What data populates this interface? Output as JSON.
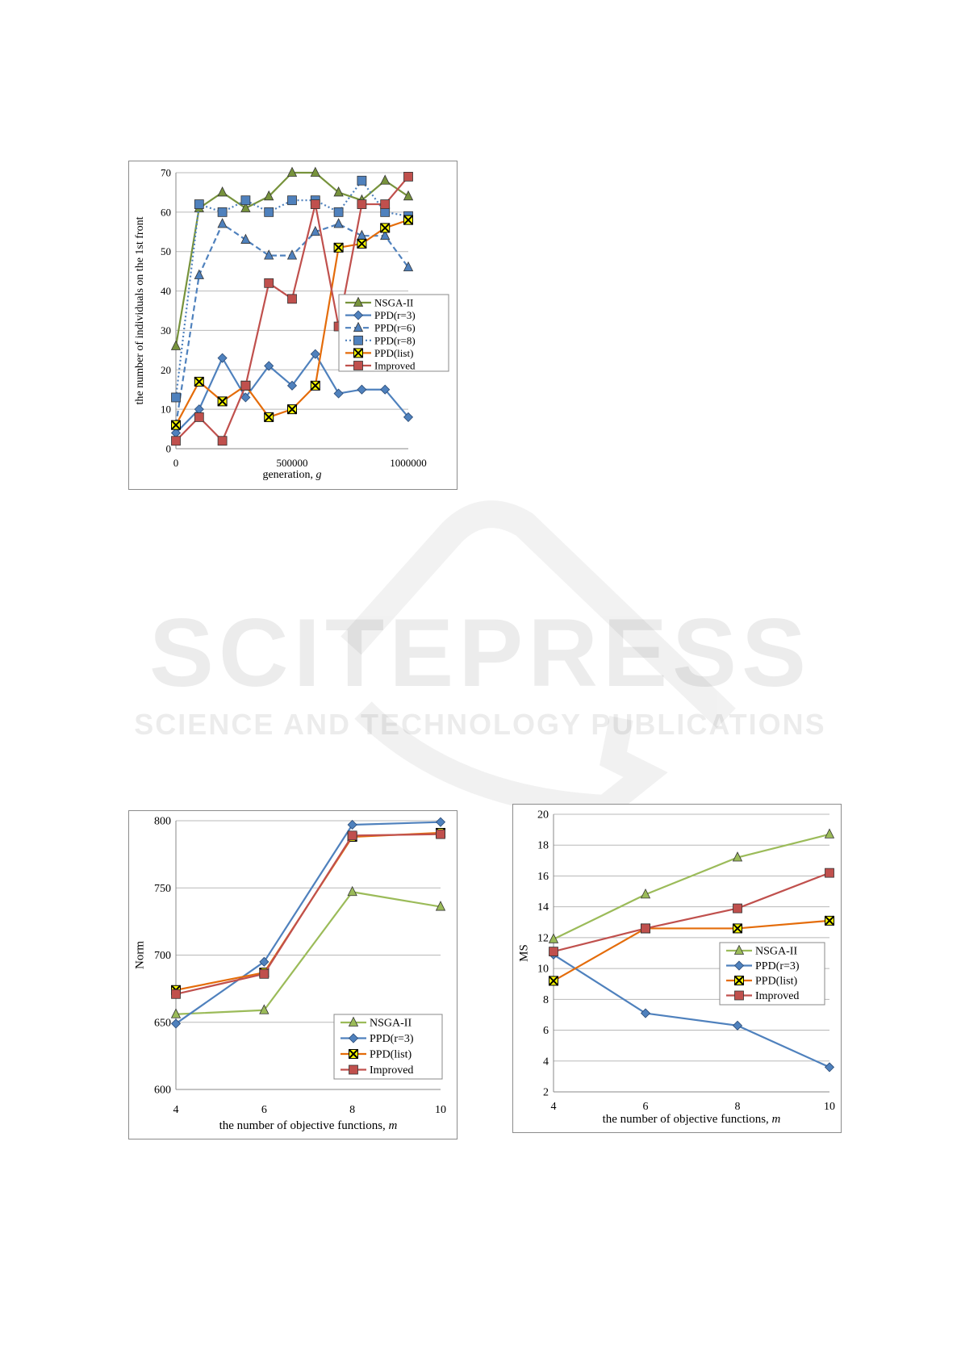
{
  "watermark": {
    "main": "SCITEPRESS",
    "sub": "SCIENCE AND TECHNOLOGY PUBLICATIONS"
  },
  "chart_data": [
    {
      "type": "line",
      "title": "",
      "xlabel": "generation, g",
      "ylabel": "the number of individuals on the 1st front",
      "xlim": [
        0,
        1000000
      ],
      "ylim": [
        0,
        70
      ],
      "xticks": [
        0,
        500000,
        1000000
      ],
      "yticks": [
        0,
        10,
        20,
        30,
        40,
        50,
        60,
        70
      ],
      "grid": true,
      "legend": "right-middle",
      "x": [
        0,
        100000,
        200000,
        300000,
        400000,
        500000,
        600000,
        700000,
        800000,
        900000,
        1000000
      ],
      "series": [
        {
          "name": "NSGA-II",
          "color": "#77933c",
          "style": "solid",
          "marker": "triangle",
          "values": [
            26,
            61,
            65,
            61,
            64,
            70,
            70,
            65,
            63,
            68,
            64
          ]
        },
        {
          "name": "PPD(r=3)",
          "color": "#4f81bd",
          "style": "solid",
          "marker": "diamond",
          "values": [
            4,
            10,
            23,
            13,
            21,
            16,
            24,
            14,
            15,
            15,
            8
          ]
        },
        {
          "name": "PPD(r=6)",
          "color": "#4f81bd",
          "style": "dashed",
          "marker": "triangle",
          "values": [
            6,
            44,
            57,
            53,
            49,
            49,
            55,
            57,
            54,
            54,
            46
          ]
        },
        {
          "name": "PPD(r=8)",
          "color": "#4f81bd",
          "style": "dotted",
          "marker": "square",
          "values": [
            13,
            62,
            60,
            63,
            60,
            63,
            63,
            60,
            68,
            60,
            59
          ]
        },
        {
          "name": "PPD(list)",
          "color": "#e46c0a",
          "style": "solid",
          "marker": "xbox",
          "values": [
            6,
            17,
            12,
            16,
            8,
            10,
            16,
            51,
            52,
            56,
            58
          ]
        },
        {
          "name": "Improved",
          "color": "#c0504d",
          "style": "solid",
          "marker": "square",
          "values": [
            2,
            8,
            2,
            16,
            42,
            38,
            62,
            31,
            62,
            62,
            69
          ]
        }
      ]
    },
    {
      "type": "line",
      "title": "",
      "xlabel": "the number of objective functions, m",
      "ylabel": "Norm",
      "xlim": [
        4,
        10
      ],
      "ylim": [
        600,
        800
      ],
      "xticks": [
        4,
        6,
        8,
        10
      ],
      "yticks": [
        600,
        650,
        700,
        750,
        800
      ],
      "grid": true,
      "legend": "bottom-right",
      "x": [
        4,
        6,
        8,
        10
      ],
      "series": [
        {
          "name": "NSGA-II",
          "color": "#9bbb59",
          "style": "solid",
          "marker": "triangle",
          "values": [
            656,
            659,
            747,
            736
          ]
        },
        {
          "name": "PPD(r=3)",
          "color": "#4f81bd",
          "style": "solid",
          "marker": "diamond",
          "values": [
            649,
            695,
            797,
            799
          ]
        },
        {
          "name": "PPD(list)",
          "color": "#e46c0a",
          "style": "solid",
          "marker": "xbox",
          "values": [
            674,
            687,
            788,
            791
          ]
        },
        {
          "name": "Improved",
          "color": "#c0504d",
          "style": "solid",
          "marker": "square",
          "values": [
            671,
            686,
            789,
            790
          ]
        }
      ]
    },
    {
      "type": "line",
      "title": "",
      "xlabel": "the number of objective functions, m",
      "ylabel": "MS",
      "xlim": [
        4,
        10
      ],
      "ylim": [
        2,
        20
      ],
      "xticks": [
        4,
        6,
        8,
        10
      ],
      "yticks": [
        2,
        4,
        6,
        8,
        10,
        12,
        14,
        16,
        18,
        20
      ],
      "grid": true,
      "legend": "right-middle",
      "x": [
        4,
        6,
        8,
        10
      ],
      "series": [
        {
          "name": "NSGA-II",
          "color": "#9bbb59",
          "style": "solid",
          "marker": "triangle",
          "values": [
            11.9,
            14.8,
            17.2,
            18.7
          ]
        },
        {
          "name": "PPD(r=3)",
          "color": "#4f81bd",
          "style": "solid",
          "marker": "diamond",
          "values": [
            10.9,
            7.1,
            6.3,
            3.6
          ]
        },
        {
          "name": "PPD(list)",
          "color": "#e46c0a",
          "style": "solid",
          "marker": "xbox",
          "values": [
            9.2,
            12.6,
            12.6,
            13.1
          ]
        },
        {
          "name": "Improved",
          "color": "#c0504d",
          "style": "solid",
          "marker": "square",
          "values": [
            11.1,
            12.6,
            13.9,
            16.2
          ]
        }
      ]
    }
  ]
}
